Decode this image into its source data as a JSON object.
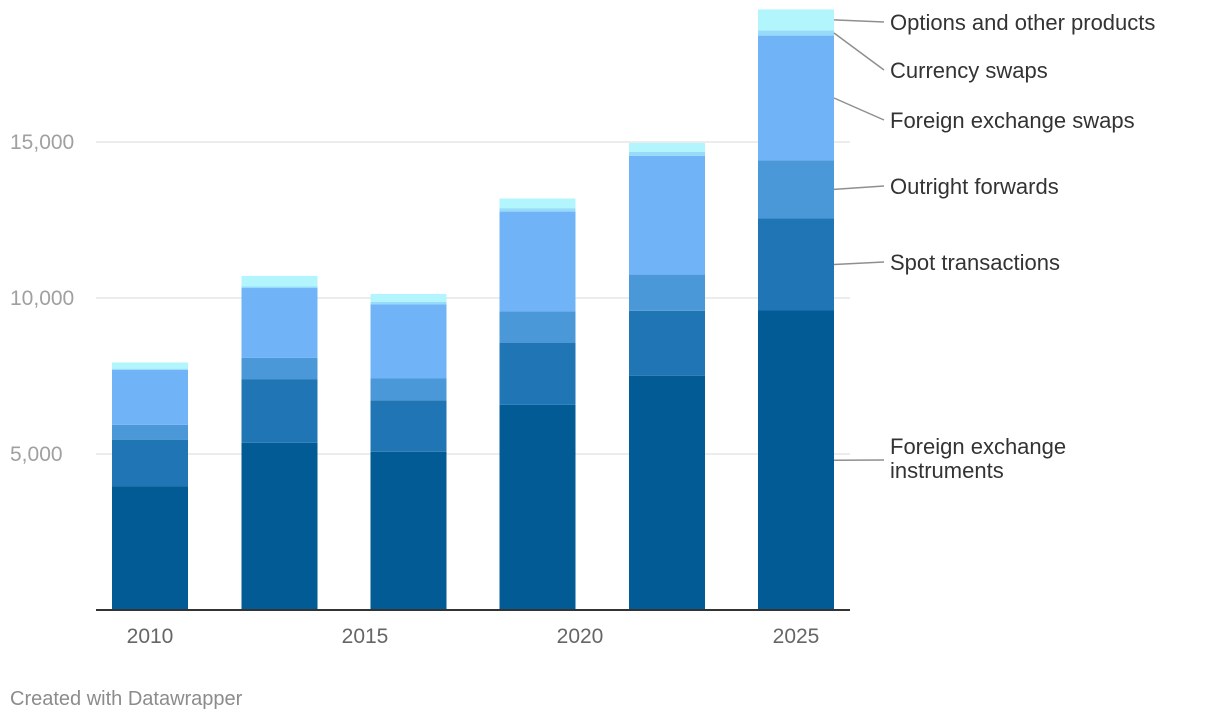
{
  "chart_data": {
    "type": "bar",
    "stacked": true,
    "categories": [
      "2010",
      "2013",
      "2016",
      "2019",
      "2022",
      "2025"
    ],
    "x_tick_labels": [
      "2010",
      "2015",
      "2020",
      "2025"
    ],
    "y_tick_labels": [
      "5,000",
      "10,000",
      "15,000"
    ],
    "y_ticks": [
      5000,
      10000,
      15000
    ],
    "ylim": [
      0,
      19000
    ],
    "grid": true,
    "series": [
      {
        "name": "Foreign exchange instruments",
        "color": "#025b95",
        "values": [
          3970,
          5360,
          5070,
          6580,
          7510,
          9600
        ]
      },
      {
        "name": "Spot transactions",
        "color": "#2076b4",
        "values": [
          1490,
          2040,
          1650,
          1990,
          2080,
          2950
        ]
      },
      {
        "name": "Outright forwards",
        "color": "#4a98d7",
        "values": [
          475,
          680,
          700,
          1000,
          1160,
          1860
        ]
      },
      {
        "name": "Foreign exchange swaps",
        "color": "#70b4f7",
        "values": [
          1760,
          2240,
          2380,
          3200,
          3810,
          4000
        ]
      },
      {
        "name": "Currency swaps",
        "color": "#96dcfa",
        "values": [
          40,
          50,
          80,
          110,
          120,
          170
        ]
      },
      {
        "name": "Options and other products",
        "color": "#b3f5fd",
        "values": [
          200,
          340,
          250,
          310,
          290,
          670
        ]
      }
    ],
    "legend": [
      "Options and other products",
      "Currency swaps",
      "Foreign exchange swaps",
      "Outright forwards",
      "Spot transactions",
      "Foreign exchange instruments"
    ],
    "legend_placement": "right",
    "title": "",
    "xlabel": "",
    "ylabel": ""
  },
  "footer": {
    "credit": "Created with Datawrapper"
  }
}
